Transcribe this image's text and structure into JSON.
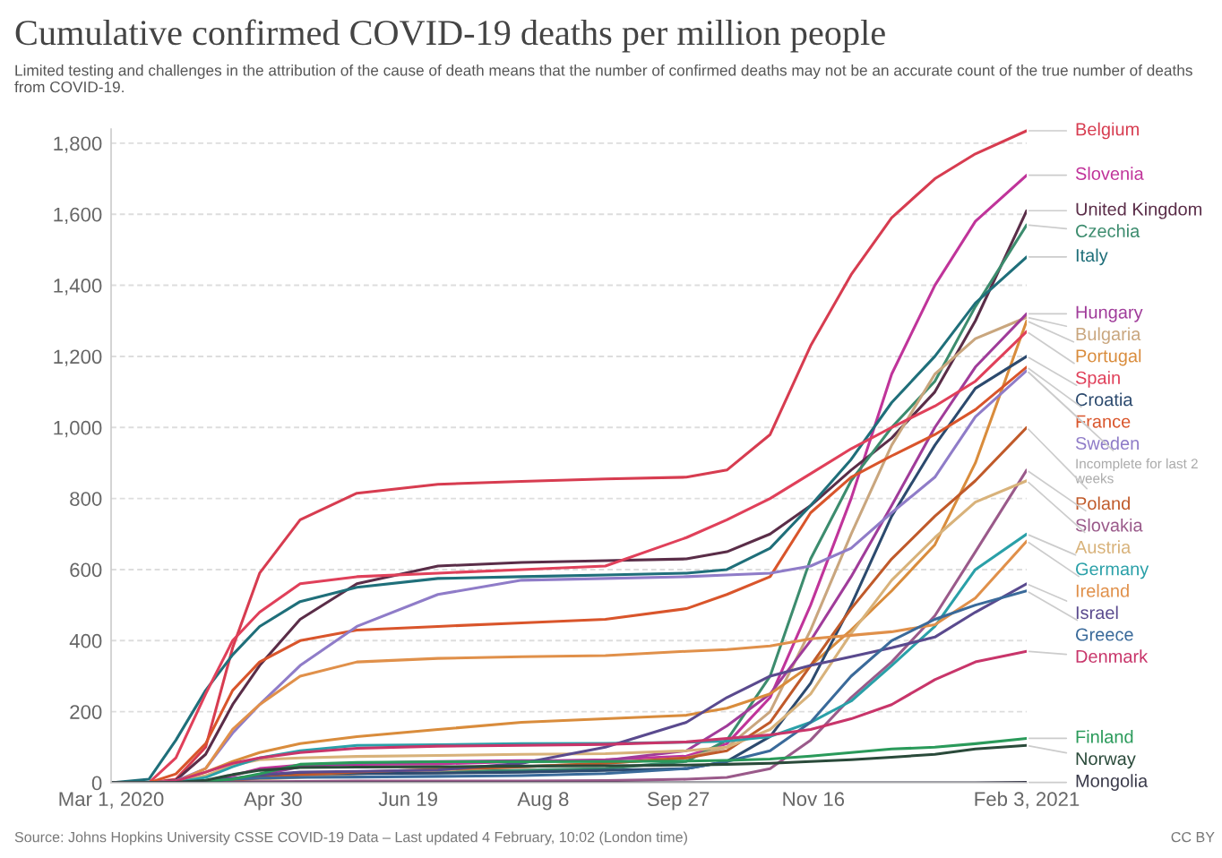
{
  "chart_data": {
    "type": "line",
    "title": "Cumulative confirmed COVID-19 deaths per million people",
    "subtitle": "Limited testing and challenges in the attribution of the cause of death means that the number of confirmed deaths may not be an accurate count of the true number of deaths from COVID-19.",
    "x": [
      "2020-03-01",
      "2020-03-15",
      "2020-03-25",
      "2020-04-05",
      "2020-04-15",
      "2020-04-25",
      "2020-05-10",
      "2020-05-31",
      "2020-06-30",
      "2020-07-31",
      "2020-08-31",
      "2020-09-30",
      "2020-10-15",
      "2020-10-31",
      "2020-11-15",
      "2020-11-30",
      "2020-12-15",
      "2020-12-31",
      "2021-01-15",
      "2021-02-03"
    ],
    "series": [
      {
        "name": "Belgium",
        "color": "#d73c50",
        "values": [
          0,
          0,
          10,
          100,
          380,
          590,
          740,
          815,
          840,
          848,
          855,
          860,
          880,
          980,
          1230,
          1430,
          1590,
          1700,
          1770,
          1835
        ]
      },
      {
        "name": "Slovenia",
        "color": "#c0349a",
        "values": [
          0,
          0,
          1,
          5,
          20,
          40,
          50,
          52,
          53,
          60,
          65,
          75,
          110,
          240,
          500,
          800,
          1150,
          1400,
          1580,
          1710
        ]
      },
      {
        "name": "United Kingdom",
        "color": "#5a2d48",
        "values": [
          0,
          0,
          7,
          80,
          220,
          330,
          460,
          560,
          610,
          620,
          625,
          630,
          650,
          700,
          780,
          880,
          970,
          1100,
          1300,
          1610
        ]
      },
      {
        "name": "Czechia",
        "color": "#3c8c6e",
        "values": [
          0,
          0,
          0,
          3,
          9,
          20,
          25,
          30,
          32,
          35,
          40,
          60,
          120,
          300,
          630,
          850,
          1000,
          1130,
          1340,
          1570
        ]
      },
      {
        "name": "Italy",
        "color": "#1f6f7a",
        "values": [
          0,
          10,
          120,
          260,
          360,
          440,
          510,
          550,
          575,
          580,
          585,
          590,
          600,
          660,
          780,
          910,
          1070,
          1200,
          1350,
          1480
        ]
      },
      {
        "name": "Bulgaria",
        "color": "#c9a67e",
        "values": [
          0,
          0,
          1,
          3,
          7,
          10,
          15,
          25,
          35,
          45,
          55,
          70,
          100,
          200,
          430,
          700,
          950,
          1150,
          1250,
          1310
        ]
      },
      {
        "name": "Hungary",
        "color": "#a03c9a",
        "values": [
          0,
          0,
          1,
          3,
          8,
          22,
          45,
          55,
          60,
          62,
          63,
          90,
          160,
          250,
          400,
          580,
          780,
          1000,
          1170,
          1320
        ]
      },
      {
        "name": "Portugal",
        "color": "#d98c3c",
        "values": [
          0,
          0,
          5,
          30,
          60,
          85,
          110,
          130,
          150,
          170,
          180,
          190,
          210,
          250,
          330,
          430,
          540,
          670,
          900,
          1300
        ]
      },
      {
        "name": "Spain",
        "color": "#e0405a",
        "values": [
          0,
          0,
          70,
          250,
          400,
          480,
          560,
          580,
          590,
          600,
          610,
          690,
          740,
          800,
          870,
          940,
          1000,
          1060,
          1130,
          1270
        ]
      },
      {
        "name": "Croatia",
        "color": "#2c4a6e",
        "values": [
          0,
          0,
          1,
          5,
          12,
          20,
          25,
          26,
          27,
          30,
          35,
          40,
          60,
          130,
          280,
          500,
          750,
          950,
          1110,
          1200
        ]
      },
      {
        "name": "France",
        "color": "#d9552b",
        "values": [
          0,
          0,
          25,
          110,
          260,
          340,
          400,
          430,
          440,
          450,
          460,
          490,
          530,
          580,
          760,
          860,
          920,
          980,
          1050,
          1170
        ]
      },
      {
        "name": "Sweden",
        "color": "#8f7cc8",
        "values": [
          0,
          0,
          5,
          40,
          140,
          220,
          330,
          440,
          530,
          570,
          575,
          580,
          585,
          590,
          610,
          660,
          760,
          860,
          1030,
          1160
        ]
      },
      {
        "name": "Poland",
        "color": "#c05a2a",
        "values": [
          0,
          0,
          0,
          2,
          6,
          14,
          22,
          30,
          38,
          45,
          55,
          70,
          90,
          170,
          330,
          490,
          630,
          750,
          850,
          1000
        ]
      },
      {
        "name": "Slovakia",
        "color": "#9a5a8a",
        "values": [
          0,
          0,
          0,
          0,
          2,
          3,
          4,
          5,
          5,
          5,
          6,
          10,
          15,
          40,
          120,
          240,
          340,
          470,
          650,
          880
        ]
      },
      {
        "name": "Austria",
        "color": "#d8b27a",
        "values": [
          0,
          0,
          3,
          20,
          50,
          65,
          70,
          74,
          77,
          80,
          82,
          90,
          100,
          150,
          250,
          420,
          570,
          690,
          790,
          850
        ]
      },
      {
        "name": "Germany",
        "color": "#2aa0a8",
        "values": [
          0,
          0,
          1,
          15,
          45,
          70,
          90,
          105,
          107,
          110,
          111,
          114,
          117,
          130,
          170,
          230,
          330,
          440,
          600,
          700
        ]
      },
      {
        "name": "Ireland",
        "color": "#e0904a",
        "values": [
          0,
          0,
          2,
          40,
          150,
          220,
          300,
          340,
          350,
          355,
          358,
          370,
          375,
          385,
          405,
          415,
          425,
          445,
          520,
          680
        ]
      },
      {
        "name": "Israel",
        "color": "#5a4a8e",
        "values": [
          0,
          0,
          0,
          2,
          12,
          22,
          30,
          32,
          36,
          55,
          100,
          170,
          240,
          300,
          330,
          355,
          380,
          410,
          480,
          560
        ]
      },
      {
        "name": "Greece",
        "color": "#3a6a9a",
        "values": [
          0,
          0,
          1,
          5,
          10,
          13,
          15,
          16,
          18,
          20,
          26,
          40,
          60,
          90,
          170,
          300,
          400,
          460,
          500,
          540
        ]
      },
      {
        "name": "Denmark",
        "color": "#c8356a",
        "values": [
          0,
          0,
          5,
          30,
          55,
          70,
          85,
          97,
          103,
          105,
          108,
          115,
          125,
          135,
          150,
          180,
          220,
          290,
          340,
          370
        ]
      },
      {
        "name": "Finland",
        "color": "#2a9a5a",
        "values": [
          0,
          0,
          0,
          4,
          10,
          25,
          52,
          57,
          59,
          59,
          60,
          61,
          63,
          67,
          75,
          85,
          95,
          100,
          110,
          125
        ]
      },
      {
        "name": "Norway",
        "color": "#2a4a3a",
        "values": [
          0,
          0,
          1,
          7,
          23,
          35,
          43,
          44,
          45,
          47,
          48,
          50,
          52,
          55,
          60,
          65,
          72,
          80,
          95,
          105
        ]
      },
      {
        "name": "Mongolia",
        "color": "#3a3a4a",
        "values": [
          0,
          0,
          0,
          0,
          0,
          0,
          0,
          0,
          0,
          0,
          0,
          0,
          0,
          0,
          0,
          0,
          0,
          0,
          0,
          1
        ]
      }
    ],
    "xlim": [
      "2020-03-01",
      "2021-02-03"
    ],
    "xticks": [
      {
        "value": "2020-03-01",
        "label": "Mar 1, 2020"
      },
      {
        "value": "2020-04-30",
        "label": "Apr 30"
      },
      {
        "value": "2020-06-19",
        "label": "Jun 19"
      },
      {
        "value": "2020-08-08",
        "label": "Aug 8"
      },
      {
        "value": "2020-09-27",
        "label": "Sep 27"
      },
      {
        "value": "2020-11-16",
        "label": "Nov 16"
      },
      {
        "value": "2021-02-03",
        "label": "Feb 3, 2021"
      }
    ],
    "ylim": [
      0,
      1840
    ],
    "yticks": [
      {
        "value": 0,
        "label": "0"
      },
      {
        "value": 200,
        "label": "200"
      },
      {
        "value": 400,
        "label": "400"
      },
      {
        "value": 600,
        "label": "600"
      },
      {
        "value": 800,
        "label": "800"
      },
      {
        "value": 1000,
        "label": "1,000"
      },
      {
        "value": 1200,
        "label": "1,200"
      },
      {
        "value": 1400,
        "label": "1,400"
      },
      {
        "value": 1600,
        "label": "1,600"
      },
      {
        "value": 1800,
        "label": "1,800"
      }
    ],
    "grid": "y",
    "marker": "none",
    "line_style": "solid",
    "annotations": [
      {
        "text": "Incomplete for last 2 weeks",
        "x": "2021-02-03",
        "y": 1160
      },
      "Source: Johns Hopkins University CSSE COVID-19 Data – Last updated 4 February, 10:02 (London time)",
      "CC BY"
    ]
  }
}
